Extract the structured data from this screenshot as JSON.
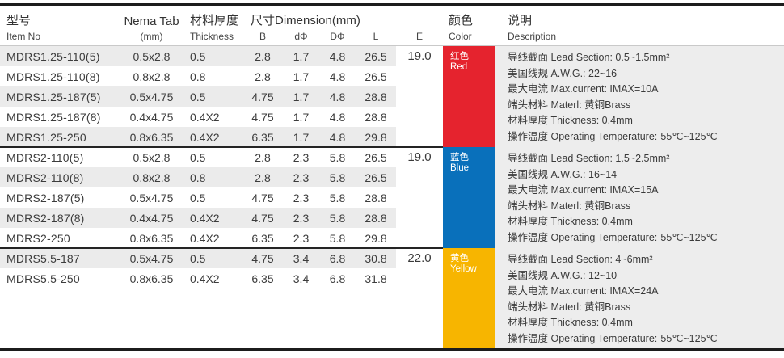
{
  "table": {
    "header": {
      "item_no_zh": "型号",
      "item_no_en": "Item No",
      "nema_tab": "Nema Tab",
      "nema_tab_unit": "(mm)",
      "thickness_zh": "材料厚度",
      "thickness_en": "Thickness",
      "dimension_label": "尺寸Dimension(mm)",
      "col_b": "B",
      "col_d": "dΦ",
      "col_dd": "DΦ",
      "col_l": "L",
      "col_e": "E",
      "color_zh": "颜色",
      "color_en": "Color",
      "desc_zh": "说明",
      "desc_en": "Description"
    },
    "groups": [
      {
        "e": "19.0",
        "color_zh": "红色",
        "color_en": "Red",
        "color_hex": "#e5232e",
        "rows": [
          {
            "item": "MDRS1.25-110(5)",
            "nema": "0.5x2.8",
            "thk": "0.5",
            "b": "2.8",
            "dphi": "1.7",
            "Dphi": "4.8",
            "l": "26.5"
          },
          {
            "item": "MDRS1.25-110(8)",
            "nema": "0.8x2.8",
            "thk": "0.8",
            "b": "2.8",
            "dphi": "1.7",
            "Dphi": "4.8",
            "l": "26.5"
          },
          {
            "item": "MDRS1.25-187(5)",
            "nema": "0.5x4.75",
            "thk": "0.5",
            "b": "4.75",
            "dphi": "1.7",
            "Dphi": "4.8",
            "l": "28.8"
          },
          {
            "item": "MDRS1.25-187(8)",
            "nema": "0.4x4.75",
            "thk": "0.4X2",
            "b": "4.75",
            "dphi": "1.7",
            "Dphi": "4.8",
            "l": "28.8"
          },
          {
            "item": "MDRS1.25-250",
            "nema": "0.8x6.35",
            "thk": "0.4X2",
            "b": "6.35",
            "dphi": "1.7",
            "Dphi": "4.8",
            "l": "29.8"
          }
        ],
        "desc": [
          "导线截面 Lead Section: 0.5~1.5mm²",
          "美国线规 A.W.G.: 22~16",
          "最大电流 Max.current: IMAX=10A",
          "端头材料 Materl: 黄铜Brass",
          "材料厚度 Thickness: 0.4mm",
          "操作温度 Operating Temperature:-55℃~125℃"
        ]
      },
      {
        "e": "19.0",
        "color_zh": "蓝色",
        "color_en": "Blue",
        "color_hex": "#0970bb",
        "rows": [
          {
            "item": "MDRS2-110(5)",
            "nema": "0.5x2.8",
            "thk": "0.5",
            "b": "2.8",
            "dphi": "2.3",
            "Dphi": "5.8",
            "l": "26.5"
          },
          {
            "item": "MDRS2-110(8)",
            "nema": "0.8x2.8",
            "thk": "0.8",
            "b": "2.8",
            "dphi": "2.3",
            "Dphi": "5.8",
            "l": "26.5"
          },
          {
            "item": "MDRS2-187(5)",
            "nema": "0.5x4.75",
            "thk": "0.5",
            "b": "4.75",
            "dphi": "2.3",
            "Dphi": "5.8",
            "l": "28.8"
          },
          {
            "item": "MDRS2-187(8)",
            "nema": "0.4x4.75",
            "thk": "0.4X2",
            "b": "4.75",
            "dphi": "2.3",
            "Dphi": "5.8",
            "l": "28.8"
          },
          {
            "item": "MDRS2-250",
            "nema": "0.8x6.35",
            "thk": "0.4X2",
            "b": "6.35",
            "dphi": "2.3",
            "Dphi": "5.8",
            "l": "29.8"
          }
        ],
        "desc": [
          "导线截面 Lead Section: 1.5~2.5mm²",
          "美国线规 A.W.G.: 16~14",
          "最大电流 Max.current: IMAX=15A",
          "端头材料 Materl: 黄铜Brass",
          "材料厚度 Thickness: 0.4mm",
          "操作温度 Operating Temperature:-55℃~125℃"
        ]
      },
      {
        "e": "22.0",
        "color_zh": "黄色",
        "color_en": "Yellow",
        "color_hex": "#f7b500",
        "rows": [
          {
            "item": "MDRS5.5-187",
            "nema": "0.5x4.75",
            "thk": "0.5",
            "b": "4.75",
            "dphi": "3.4",
            "Dphi": "6.8",
            "l": "30.8"
          },
          {
            "item": "MDRS5.5-250",
            "nema": "0.8x6.35",
            "thk": "0.4X2",
            "b": "6.35",
            "dphi": "3.4",
            "Dphi": "6.8",
            "l": "31.8"
          }
        ],
        "desc": [
          "导线截面 Lead Section: 4~6mm²",
          "美国线规 A.W.G.: 12~10",
          "最大电流 Max.current: IMAX=24A",
          "端头材料 Materl: 黄铜Brass",
          "材料厚度 Thickness: 0.4mm",
          "操作温度 Operating Temperature:-55℃~125℃"
        ]
      }
    ]
  },
  "colors": {
    "red": "#e5232e",
    "blue": "#0970bb",
    "yellow": "#f7b500",
    "row_stripe": "#ebebeb",
    "description_bg": "#ededed",
    "rule": "#1c1c1c"
  }
}
